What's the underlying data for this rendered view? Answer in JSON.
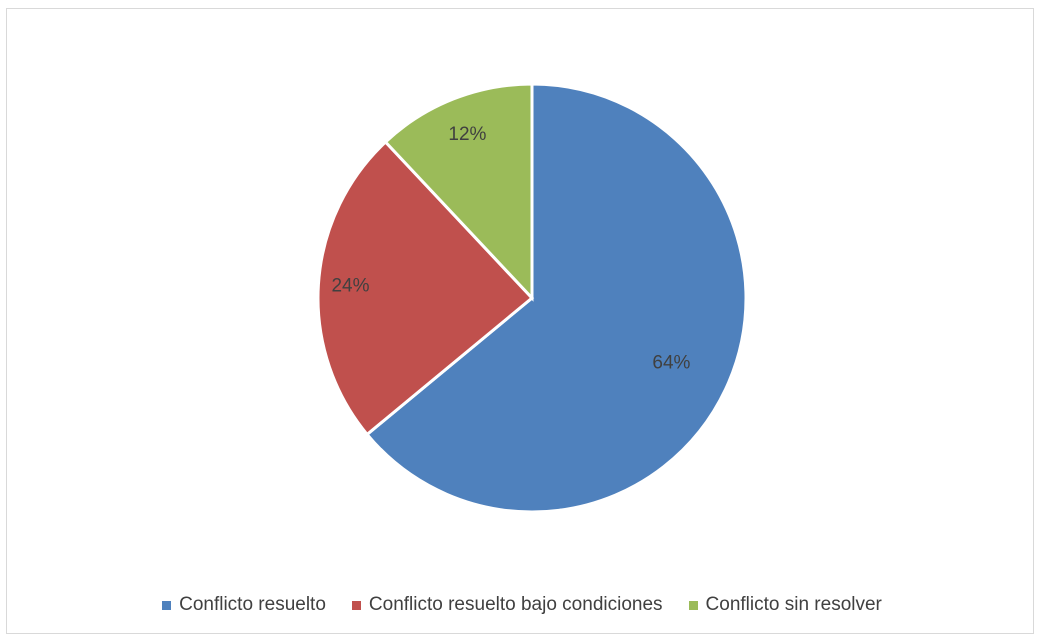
{
  "chart_data": {
    "type": "pie",
    "title": "",
    "categories": [
      "Conflicto resuelto",
      "Conflicto resuelto bajo condiciones",
      "Conflicto sin resolver"
    ],
    "values": [
      64,
      24,
      12
    ],
    "labels": [
      "64%",
      "24%",
      "12%"
    ],
    "colors": [
      "#4F81BD",
      "#C0504D",
      "#9BBB59"
    ],
    "start_angle_deg": 0,
    "direction": "clockwise",
    "legend_position": "bottom"
  }
}
